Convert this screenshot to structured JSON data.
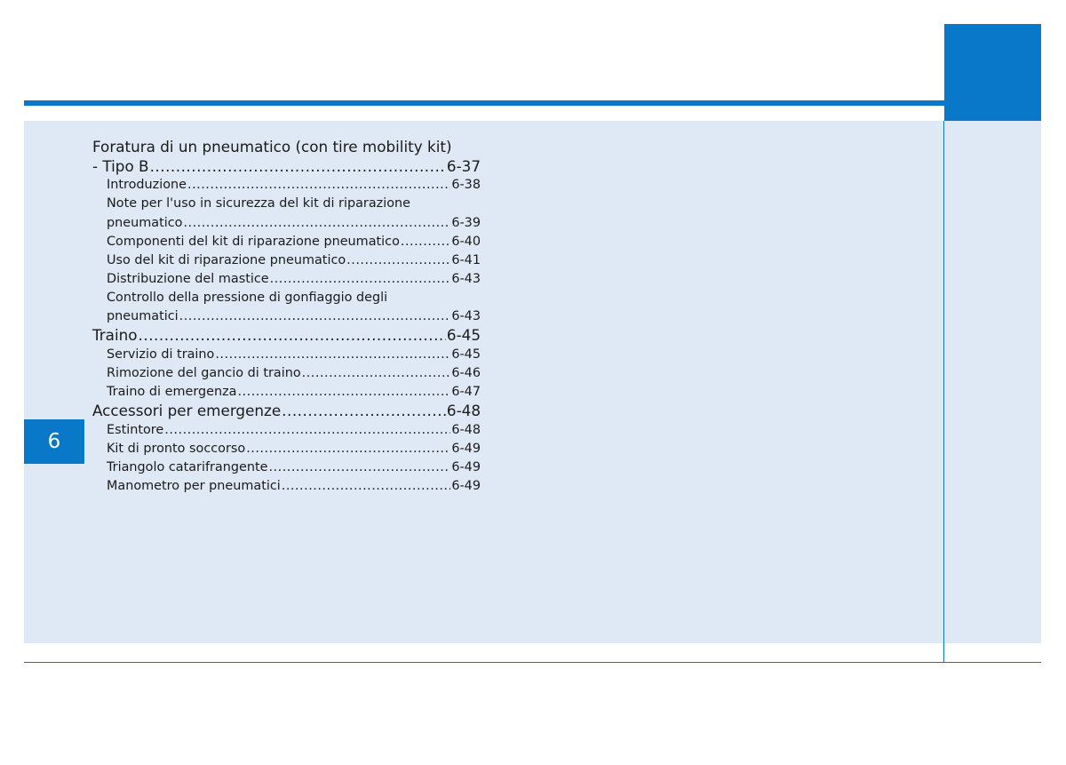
{
  "chapter_number": "6",
  "toc": {
    "section1": {
      "title_line1": "Foratura di un pneumatico (con tire mobility kit)",
      "title_line2": "- Tipo B",
      "page": "6-37",
      "items": [
        {
          "label": "Introduzione",
          "page": "6-38"
        },
        {
          "label_line1": "Note per l'uso in sicurezza del kit di riparazione",
          "label": "pneumatico",
          "page": "6-39"
        },
        {
          "label": "Componenti del kit di riparazione pneumatico",
          "page": "6-40"
        },
        {
          "label": "Uso del kit di riparazione pneumatico",
          "page": "6-41"
        },
        {
          "label": "Distribuzione del mastice",
          "page": "6-43"
        },
        {
          "label_line1": "Controllo della pressione di gonfiaggio degli",
          "label": "pneumatici",
          "page": "6-43"
        }
      ]
    },
    "section2": {
      "title": "Traino",
      "page": "6-45",
      "items": [
        {
          "label": "Servizio di traino",
          "page": "6-45"
        },
        {
          "label": "Rimozione del gancio di traino",
          "page": "6-46"
        },
        {
          "label": "Traino di emergenza",
          "page": "6-47"
        }
      ]
    },
    "section3": {
      "title": "Accessori per emergenze",
      "page": "6-48",
      "items": [
        {
          "label": "Estintore",
          "page": "6-48"
        },
        {
          "label": "Kit di pronto soccorso",
          "page": "6-49"
        },
        {
          "label": "Triangolo catarifrangente",
          "page": "6-49"
        },
        {
          "label": "Manometro per pneumatici",
          "page": "6-49"
        }
      ]
    }
  }
}
